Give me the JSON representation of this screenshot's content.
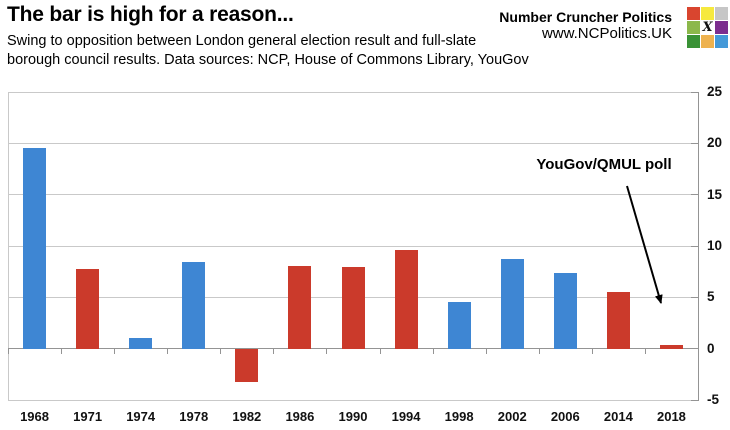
{
  "header": {
    "title": "The bar is high for a reason...",
    "subtitle_line1": "Swing to opposition between London general election result and full-slate",
    "subtitle_line2": "borough council results. Data sources: NCP, House of Commons Library, YouGov"
  },
  "brand": {
    "name": "Number Cruncher Politics",
    "url": "www.NCPolitics.UK",
    "logo": {
      "center_glyph": "X",
      "cell_colors": [
        "#d9452f",
        "#f6e93e",
        "#c6c6c6",
        "#8cb84b",
        "#ffffff",
        "#7c2d8e",
        "#3a9236",
        "#eeb24f",
        "#4499d8"
      ]
    }
  },
  "colors": {
    "blue": "#3e86d3",
    "red": "#cb3a2b",
    "gridline": "#c9c9c9",
    "axis": "#949494",
    "text": "#000000"
  },
  "chart_data": {
    "type": "bar",
    "categories": [
      "1968",
      "1971",
      "1974",
      "1978",
      "1982",
      "1986",
      "1990",
      "1994",
      "1998",
      "2002",
      "2006",
      "2014",
      "2018"
    ],
    "values": [
      19.5,
      7.8,
      1.0,
      8.4,
      -3.2,
      8.1,
      8.0,
      9.6,
      4.5,
      8.7,
      7.4,
      5.5,
      0.4
    ],
    "bar_colors": [
      "blue",
      "red",
      "blue",
      "blue",
      "red",
      "red",
      "red",
      "red",
      "blue",
      "blue",
      "blue",
      "red",
      "red"
    ],
    "title": "The bar is high for a reason...",
    "xlabel": "",
    "ylabel": "",
    "ylim": [
      -5,
      25
    ],
    "yticks": [
      25,
      20,
      15,
      10,
      5,
      0,
      -5
    ],
    "grid": true,
    "y_axis_side": "right",
    "legend": null,
    "annotation": {
      "label": "YouGov/QMUL poll",
      "target_category": "2018"
    }
  }
}
